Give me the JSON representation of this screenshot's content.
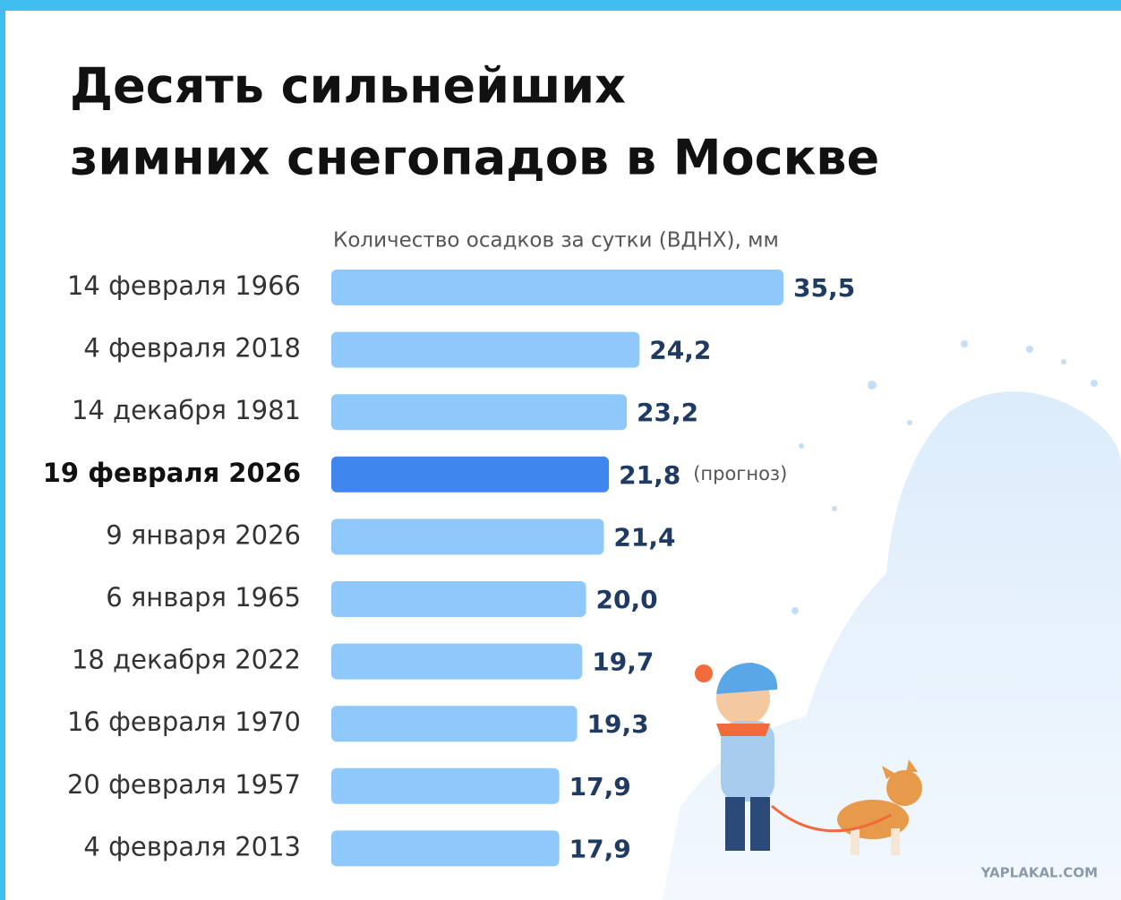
{
  "chart_data": {
    "type": "bar",
    "orientation": "horizontal",
    "title": [
      "Десять сильнейших",
      "зимних снегопадов в Москве"
    ],
    "subtitle": "Количество осадков за сутки (ВДНХ), мм",
    "categories": [
      "14 февраля 1966",
      "4 февраля 2018",
      "14 декабря 1981",
      "19 февраля 2026",
      "9 января 2026",
      "6 января 1965",
      "18 декабря 2022",
      "16 февраля 1970",
      "20 февраля 1957",
      "4 февраля 2013"
    ],
    "values": [
      35.5,
      24.2,
      23.2,
      21.8,
      21.4,
      20.0,
      19.7,
      19.3,
      17.9,
      17.9
    ],
    "value_labels": [
      "35,5",
      "24,2",
      "23,2",
      "21,8",
      "21,4",
      "20,0",
      "19,7",
      "19,3",
      "17,9",
      "17,9"
    ],
    "notes": [
      null,
      null,
      null,
      "(прогноз)",
      null,
      null,
      null,
      null,
      null,
      null
    ],
    "colors": [
      "#8fc9fb",
      "#8fc9fb",
      "#8fc9fb",
      "#3f86ef",
      "#8fc9fb",
      "#8fc9fb",
      "#8fc9fb",
      "#8fc9fb",
      "#8fc9fb",
      "#8fc9fb"
    ]
  },
  "watermark": "YAPLAKAL.COM"
}
